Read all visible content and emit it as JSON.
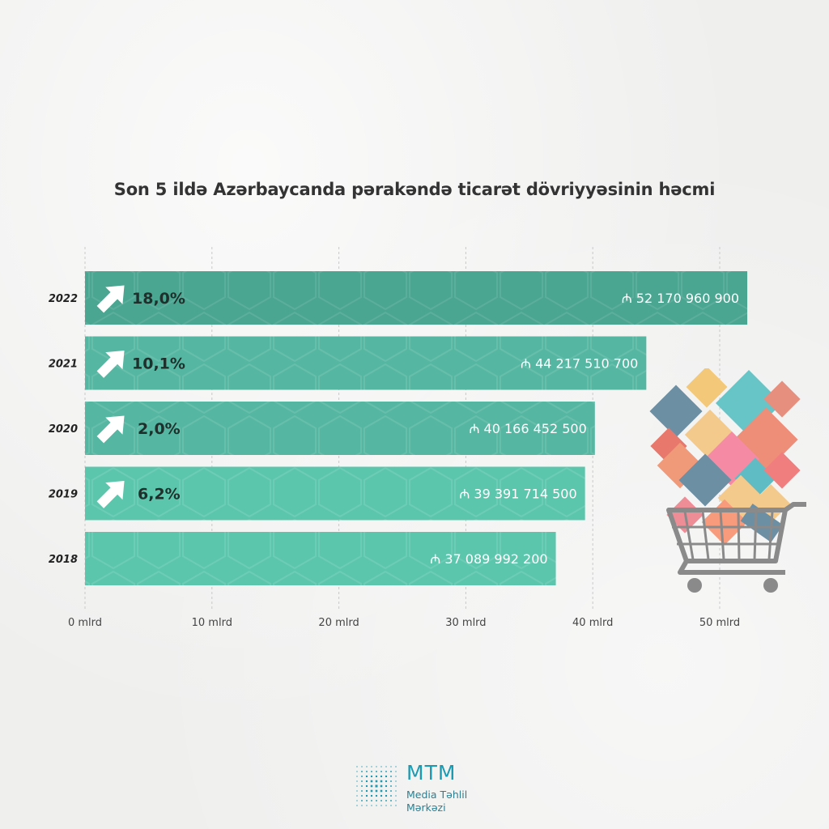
{
  "chart_data": {
    "type": "bar",
    "orientation": "horizontal",
    "title": "Son 5 ildə Azərbaycanda pərakəndə ticarət dövriyyəsinin həcmi",
    "categories": [
      "2022",
      "2021",
      "2020",
      "2019",
      "2018"
    ],
    "values": [
      52170960900,
      44217510700,
      40166452500,
      39391714500,
      37089992200
    ],
    "value_labels": [
      "52 170 960 900",
      "44 217 510 700",
      "40 166 452 500",
      "39 391 714 500",
      "37 089 992 200"
    ],
    "growth_labels": [
      "18,0%",
      "10,1%",
      "2,0%",
      "6,2%",
      ""
    ],
    "currency_symbol": "₼",
    "xlim": [
      0,
      50000000000
    ],
    "x_ticks": [
      0,
      10000000000,
      20000000000,
      30000000000,
      40000000000,
      50000000000
    ],
    "x_tick_labels": [
      "0 mlrd",
      "10 mlrd",
      "20 mlrd",
      "30 mlrd",
      "40 mlrd",
      "50 mlrd"
    ],
    "grid": true,
    "colors": {
      "bar_top": "#4aa591",
      "bar_mid": "#55b7a2",
      "bar_base": "#5cc6ad",
      "grid": "#c9c9c9",
      "arrow": "#ffffff"
    }
  },
  "logo": {
    "name": "MTM",
    "line1": "Media Təhlil",
    "line2": "Mərkəzi",
    "color": "#1b9bb2"
  },
  "illustration": {
    "icon": "shopping-cart-icon"
  }
}
